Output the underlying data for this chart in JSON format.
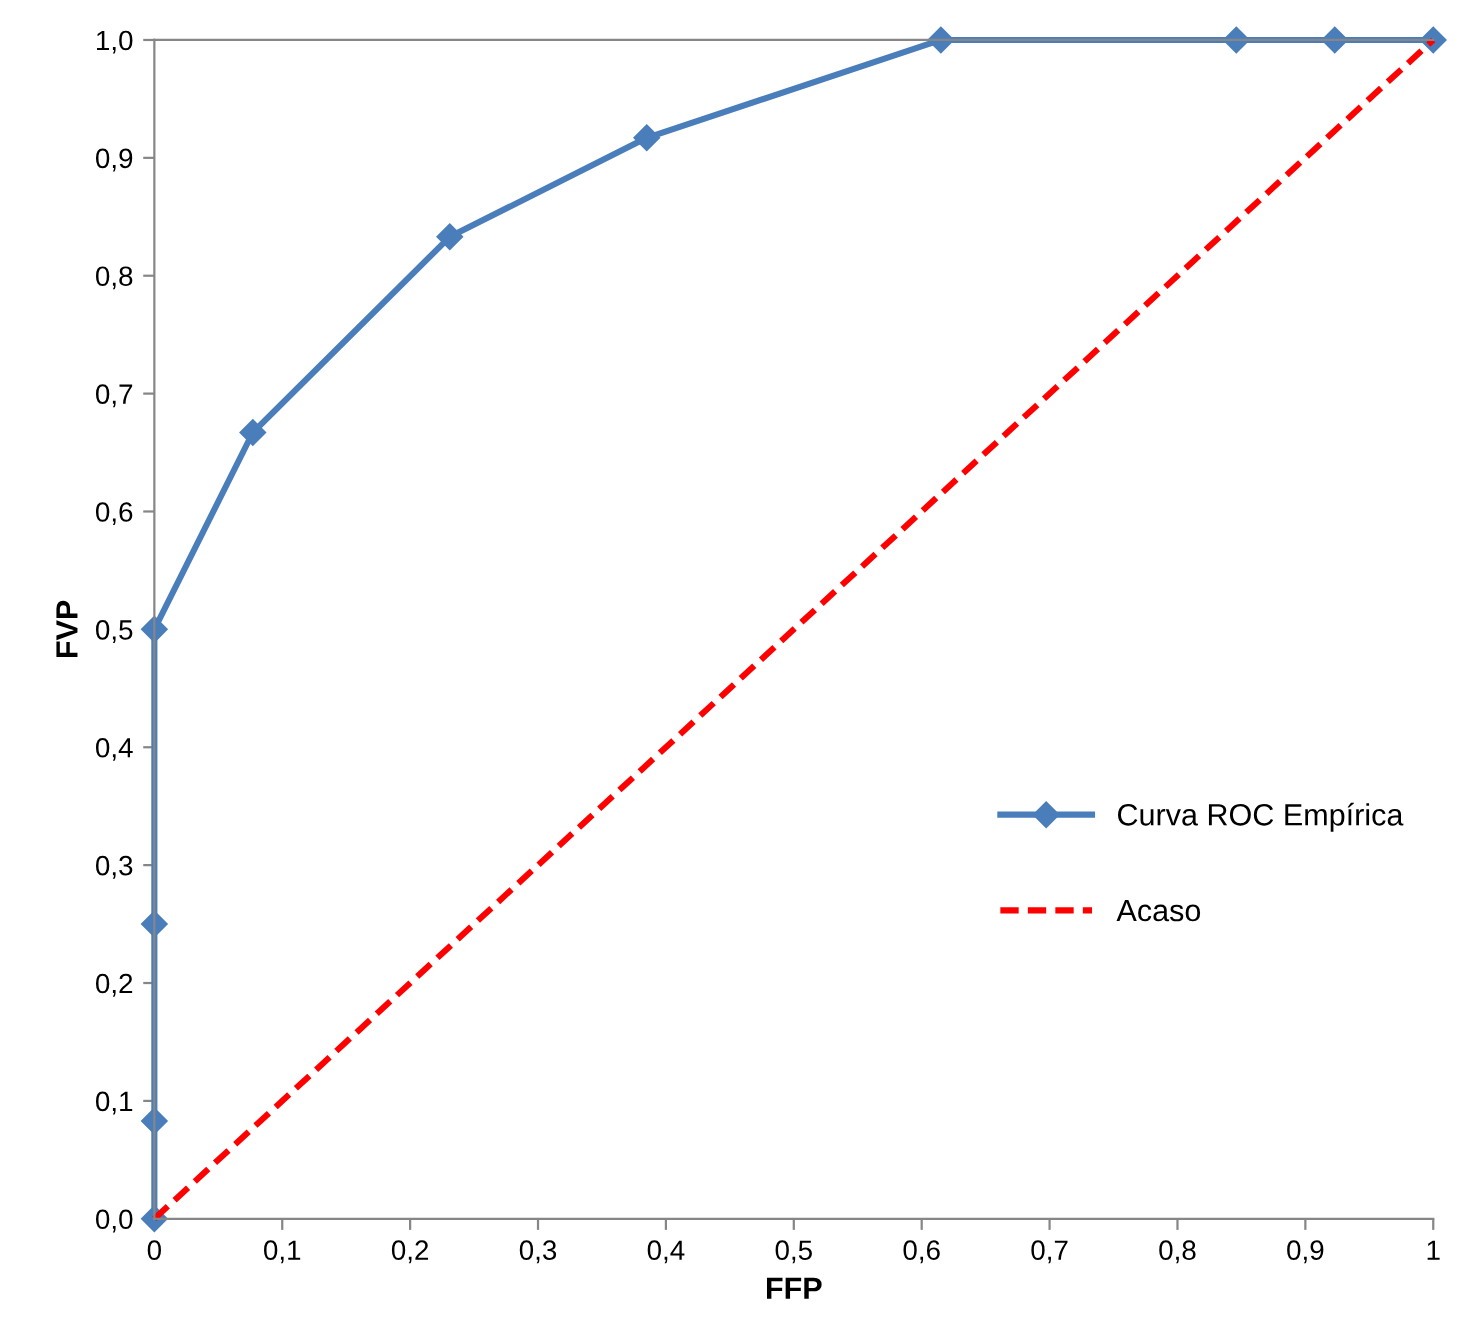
{
  "chart_data": {
    "type": "line",
    "xlabel": "FFP",
    "ylabel": "FVP",
    "series": [
      {
        "name": "Curva ROC Empírica",
        "color": "#4a7ebb",
        "marker": "diamond",
        "line_style": "solid",
        "x": [
          0,
          0,
          0,
          0,
          0.077,
          0.231,
          0.385,
          0.615,
          0.846,
          0.923,
          1
        ],
        "values": [
          0,
          0.083,
          0.25,
          0.5,
          0.667,
          0.833,
          0.917,
          1,
          1,
          1,
          1
        ]
      },
      {
        "name": "Acaso",
        "color": "#ff0000",
        "marker": "none",
        "line_style": "dashed",
        "x": [
          0,
          1
        ],
        "values": [
          0,
          1
        ]
      }
    ],
    "xlim": [
      0,
      1
    ],
    "ylim": [
      0,
      1
    ],
    "xticks": [
      0,
      {
        "value": 0.1,
        "label": "0,1"
      },
      {
        "value": 0.2,
        "label": "0,2"
      },
      {
        "value": 0.3,
        "label": "0,3"
      },
      {
        "value": 0.4,
        "label": "0,4"
      },
      {
        "value": 0.5,
        "label": "0,5"
      },
      {
        "value": 0.6,
        "label": "0,6"
      },
      {
        "value": 0.7,
        "label": "0,7"
      },
      {
        "value": 0.8,
        "label": "0,8"
      },
      {
        "value": 0.9,
        "label": "0,9"
      },
      1
    ],
    "yticks": [
      {
        "value": 0,
        "label": "0,0"
      },
      {
        "value": 0.1,
        "label": "0,1"
      },
      {
        "value": 0.2,
        "label": "0,2"
      },
      {
        "value": 0.3,
        "label": "0,3"
      },
      {
        "value": 0.4,
        "label": "0,4"
      },
      {
        "value": 0.5,
        "label": "0,5"
      },
      {
        "value": 0.6,
        "label": "0,6"
      },
      {
        "value": 0.7,
        "label": "0,7"
      },
      {
        "value": 0.8,
        "label": "0,8"
      },
      {
        "value": 0.9,
        "label": "0,9"
      },
      {
        "value": 1,
        "label": "1,0"
      }
    ],
    "grid": false,
    "legend": "right"
  }
}
